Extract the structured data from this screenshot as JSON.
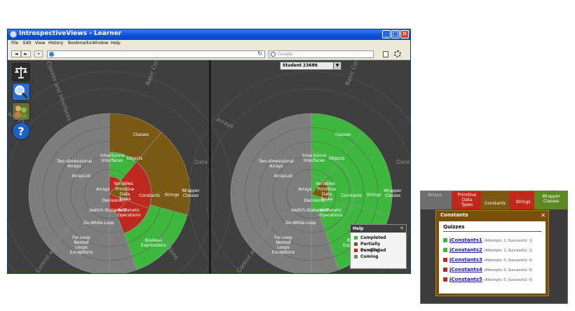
{
  "window": {
    "title": "IntrospectiveViews - Learner",
    "menu": [
      "File",
      "Edit",
      "View",
      "History",
      "Bookmarks",
      "Window",
      "Help"
    ],
    "search_placeholder": "Google",
    "minimize_glyph": "_",
    "maximize_glyph": "□",
    "close_glyph": "✕",
    "back_glyph": "◄",
    "forward_glyph": "►",
    "add_glyph": "+",
    "reload_glyph": "↻"
  },
  "tools": [
    {
      "icon": "scales-icon",
      "color": "#2c2c2c"
    },
    {
      "icon": "magnifier-icon",
      "color": "#2a6bd0"
    },
    {
      "icon": "users-icon",
      "color": "#6a6a3a"
    },
    {
      "icon": "question-icon",
      "color": "#1f5fc8"
    }
  ],
  "student_select": {
    "value": "Student 23686"
  },
  "radial": {
    "outer_labels": [
      "Arrays",
      "Classes and Interfaces",
      "Basic Constructs",
      "Data",
      "Operations",
      "Control and Structure"
    ],
    "ring_labels": {
      "classes": "Classes",
      "objects": "Objects",
      "inheritance": "Inheritance\nInterfaces",
      "two_dim": "Two-dimensional\nArrays",
      "arraylist": "ArrayList",
      "arrays": "Arrays",
      "variables": "Variables",
      "primitive": "Primitive\nData\nTypes",
      "decisions": "Decisions",
      "switch": "Switch-Statement",
      "arith": "Arithmetic\nOperations",
      "constants": "Constants",
      "strings": "Strings",
      "wrapper": "Wrapper\nClasses",
      "boolean": "Boolean\nExpressions",
      "dowhile": "Do-While-Loop",
      "forloop": "For-Loop\nNested\nLoops\nExceptions"
    },
    "colors": {
      "completed": "#3db83d",
      "partial": "#7a5a12",
      "pending": "#c0281c",
      "coming": "#7d7d7d"
    }
  },
  "help": {
    "title": "Help",
    "close_glyph": "✕",
    "items": [
      {
        "label": "Completed",
        "color": "#3db83d"
      },
      {
        "label": "Partially Completed",
        "color": "#7a5a12"
      },
      {
        "label": "Pending",
        "color": "#c0281c"
      },
      {
        "label": "Coming",
        "color": "#7d7d7d"
      }
    ]
  },
  "inset": {
    "bg_labels": [
      "Arrays",
      "Primitive\nData\nTypes",
      "Constants",
      "Strings",
      "Wrapper\nClasses"
    ],
    "popup": {
      "title": "Constants",
      "close_glyph": "✕",
      "section": "Quizzes",
      "quizzes": [
        {
          "name": "jConstants1",
          "attempts": "(Attempts: 2, Successful: 1)",
          "color": "#3db83d"
        },
        {
          "name": "jConstants2",
          "attempts": "(Attempts: 1, Successful: 1)",
          "color": "#3db83d"
        },
        {
          "name": "jConstants3",
          "attempts": "(Attempts: 0, Successful: 0)",
          "color": "#c0281c"
        },
        {
          "name": "jConstants4",
          "attempts": "(Attempts: 0, Successful: 0)",
          "color": "#c0281c"
        },
        {
          "name": "jConstants5",
          "attempts": "(Attempts: 0, Successful: 0)",
          "color": "#c0281c"
        }
      ]
    }
  }
}
